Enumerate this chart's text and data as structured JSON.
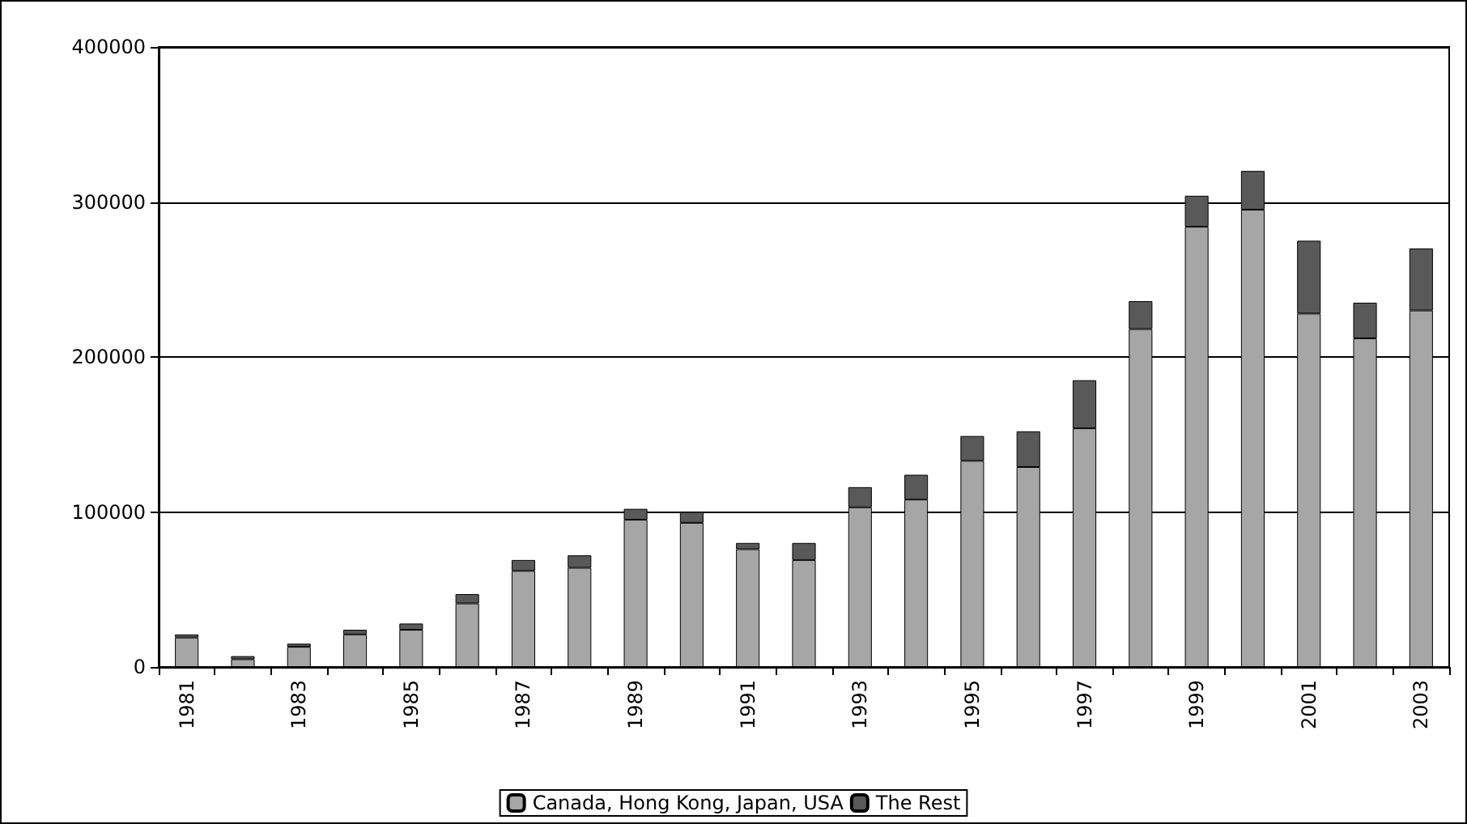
{
  "chart_data": {
    "type": "bar",
    "stacked": true,
    "categories": [
      "1981",
      null,
      "1983",
      null,
      "1985",
      null,
      "1987",
      null,
      "1989",
      null,
      "1991",
      null,
      "1993",
      null,
      "1995",
      null,
      "1997",
      null,
      "1999",
      null,
      "2001",
      null,
      "2003"
    ],
    "series": [
      {
        "name": "Canada, Hong Kong, Japan, USA",
        "color": "#a6a6a6",
        "values": [
          19000,
          5000,
          13000,
          21000,
          24000,
          41000,
          62000,
          64000,
          95000,
          93000,
          76000,
          69000,
          103000,
          108000,
          133000,
          129000,
          154000,
          218000,
          284000,
          295000,
          228000,
          212000,
          230000
        ]
      },
      {
        "name": "The Rest",
        "color": "#595959",
        "values": [
          2000,
          2000,
          2000,
          3000,
          4000,
          6000,
          7000,
          8000,
          7000,
          7000,
          4000,
          11000,
          13000,
          16000,
          16000,
          23000,
          31000,
          18000,
          20000,
          25000,
          47000,
          23000,
          40000
        ]
      }
    ],
    "ylim": [
      0,
      400000
    ],
    "yticks": [
      0,
      100000,
      200000,
      300000,
      400000
    ],
    "grid": "y",
    "legend": "bottom"
  }
}
